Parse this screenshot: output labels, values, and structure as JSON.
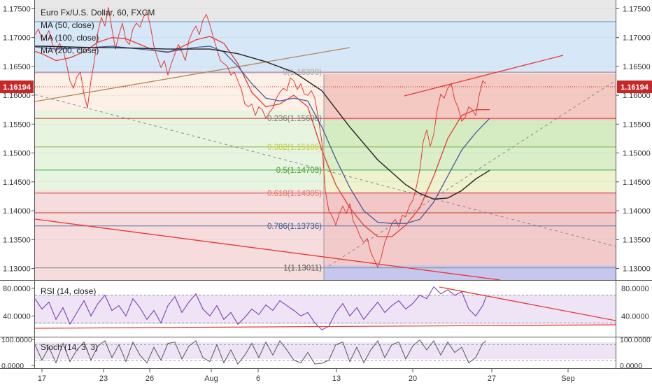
{
  "title": "Euro Fx/U.S. Dollar, 60, FXCM",
  "colors": {
    "price": "#e53935",
    "ma50": "#e53935",
    "ma100": "#4a5a9c",
    "ma200": "#222222",
    "rsi": "#7b3fb0",
    "stoch": "#555555",
    "badge": "#c62828",
    "trend_red": "#e53935",
    "trend_brown": "#b08a55"
  },
  "legend": [
    {
      "label": "MA (50, close)"
    },
    {
      "label": "MA (100, close)"
    },
    {
      "label": "MA (200, close)"
    }
  ],
  "price_badge": "1.16194",
  "price_level": 1.16194,
  "chart_data": [
    {
      "type": "line",
      "panel": "price",
      "title": "Euro Fx/U.S. Dollar, 60, FXCM",
      "ylim": [
        1.128,
        1.1765
      ],
      "y_ticks": [
        "1.17500",
        "1.17000",
        "1.16500",
        "1.16000",
        "1.15500",
        "1.15000",
        "1.14500",
        "1.14000",
        "1.13500",
        "1.13000"
      ],
      "x_ticks": [
        "17",
        "23",
        "26",
        "Aug",
        "6",
        "13",
        "20",
        "27",
        "Sep"
      ],
      "fibonacci": [
        {
          "label": "0(1.16399)",
          "value": 1.16399
        },
        {
          "label": "0.236(1.15600)",
          "value": 1.156
        },
        {
          "label": "0.382(1.15105)",
          "value": 1.15105
        },
        {
          "label": "0.5(1.14705)",
          "value": 1.14705
        },
        {
          "label": "0.618(1.14305)",
          "value": 1.14305
        },
        {
          "label": "0.786(1.13736)",
          "value": 1.13736
        },
        {
          "label": "1(1.13011)",
          "value": 1.13011
        }
      ],
      "series": [
        {
          "name": "MA (50, close)",
          "x": [
            0,
            20,
            40,
            60,
            80,
            100,
            120,
            140,
            160,
            180,
            200,
            220,
            240,
            260,
            280,
            300,
            320,
            340,
            360,
            380,
            400,
            420,
            440,
            460,
            480,
            500,
            520,
            540,
            560,
            580,
            600,
            620,
            640,
            660,
            680,
            700
          ],
          "values": [
            1.1705,
            1.1695,
            1.168,
            1.1672,
            1.166,
            1.1665,
            1.1675,
            1.1692,
            1.17,
            1.1698,
            1.1688,
            1.1678,
            1.1674,
            1.1684,
            1.1696,
            1.1702,
            1.169,
            1.1655,
            1.1605,
            1.158,
            1.1585,
            1.16,
            1.158,
            1.1505,
            1.1445,
            1.1405,
            1.1375,
            1.1355,
            1.1355,
            1.1375,
            1.1405,
            1.146,
            1.1525,
            1.1565,
            1.1575,
            1.1575
          ]
        },
        {
          "name": "MA (100, close)",
          "x": [
            0,
            40,
            80,
            120,
            160,
            200,
            240,
            280,
            300,
            320,
            340,
            360,
            380,
            400,
            420,
            440,
            460,
            480,
            500,
            520,
            540,
            560,
            580,
            600,
            620,
            640,
            660,
            680,
            700
          ],
          "values": [
            1.1695,
            1.1685,
            1.168,
            1.1682,
            1.1685,
            1.168,
            1.1675,
            1.1683,
            1.1685,
            1.1675,
            1.165,
            1.162,
            1.1595,
            1.159,
            1.1595,
            1.159,
            1.1545,
            1.149,
            1.144,
            1.14,
            1.138,
            1.1378,
            1.1378,
            1.1385,
            1.1415,
            1.146,
            1.1505,
            1.1535,
            1.156
          ]
        },
        {
          "name": "MA (200, close)",
          "x": [
            0,
            60,
            120,
            180,
            240,
            300,
            340,
            380,
            420,
            460,
            500,
            540,
            580,
            600,
            620,
            640,
            660,
            680,
            700
          ],
          "values": [
            1.1685,
            1.1685,
            1.1683,
            1.1682,
            1.168,
            1.168,
            1.1672,
            1.1658,
            1.164,
            1.1608,
            1.1545,
            1.1488,
            1.1445,
            1.143,
            1.142,
            1.1422,
            1.1435,
            1.1455,
            1.147
          ]
        },
        {
          "name": "",
          "x": [
            50,
            55,
            60,
            65,
            70,
            75,
            80,
            85,
            90,
            95,
            100,
            105,
            110,
            115,
            120,
            125,
            130,
            135,
            140,
            145,
            150,
            155,
            160,
            165,
            170,
            175,
            180,
            185,
            190,
            195,
            200,
            205,
            210,
            215,
            220,
            225,
            230,
            235,
            240,
            245,
            250,
            255,
            260,
            265,
            270,
            275,
            280,
            285,
            290,
            295,
            300,
            305,
            310,
            315,
            320,
            325,
            330,
            335,
            340,
            345,
            350,
            355,
            360,
            365,
            370,
            375,
            380,
            385,
            390,
            395,
            400,
            405,
            410,
            415,
            420,
            425,
            430,
            435,
            440,
            445,
            450,
            455,
            460,
            465,
            470,
            475,
            480,
            485,
            490,
            495,
            500,
            505,
            510,
            515,
            520,
            525,
            530,
            535,
            540,
            545,
            550,
            555,
            560,
            565,
            570,
            575,
            580,
            585,
            590,
            595,
            600,
            605,
            610,
            615,
            620,
            625,
            630,
            635,
            640,
            645,
            650,
            655,
            660,
            665,
            670,
            675,
            680,
            685,
            690,
            695
          ],
          "values": [
            1.1705,
            1.1715,
            1.1695,
            1.17,
            1.1712,
            1.1688,
            1.1675,
            1.169,
            1.168,
            1.1655,
            1.1625,
            1.1612,
            1.1632,
            1.164,
            1.1602,
            1.1578,
            1.1625,
            1.166,
            1.171,
            1.1735,
            1.172,
            1.1752,
            1.1715,
            1.168,
            1.1705,
            1.1725,
            1.1695,
            1.1688,
            1.1715,
            1.1725,
            1.1718,
            1.1735,
            1.1745,
            1.172,
            1.1685,
            1.1665,
            1.1648,
            1.166,
            1.1635,
            1.1655,
            1.1672,
            1.1688,
            1.1675,
            1.166,
            1.1695,
            1.171,
            1.172,
            1.1705,
            1.173,
            1.174,
            1.1722,
            1.17,
            1.168,
            1.166,
            1.1655,
            1.165,
            1.1635,
            1.164,
            1.1625,
            1.161,
            1.1585,
            1.158,
            1.1585,
            1.1565,
            1.158,
            1.1575,
            1.156,
            1.157,
            1.1578,
            1.1595,
            1.1605,
            1.1612,
            1.1608,
            1.163,
            1.1625,
            1.161,
            1.162,
            1.1602,
            1.16,
            1.1608,
            1.1595,
            1.156,
            1.152,
            1.1435,
            1.14,
            1.139,
            1.1375,
            1.1395,
            1.1408,
            1.1395,
            1.1412,
            1.1382,
            1.137,
            1.1355,
            1.1345,
            1.1352,
            1.1328,
            1.1315,
            1.1302,
            1.132,
            1.1345,
            1.136,
            1.1378,
            1.1385,
            1.1372,
            1.1392,
            1.139,
            1.1408,
            1.1418,
            1.144,
            1.147,
            1.152,
            1.154,
            1.1512,
            1.1532,
            1.1575,
            1.1602,
            1.1595,
            1.1612,
            1.162,
            1.1592,
            1.1578,
            1.1555,
            1.1562,
            1.158,
            1.1575,
            1.1565,
            1.16,
            1.1625,
            1.162
          ]
        }
      ]
    },
    {
      "type": "line",
      "panel": "rsi",
      "title": "RSI (14, close)",
      "ylim": [
        10,
        90
      ],
      "y_ticks": [
        "80.0000",
        "40.0000"
      ],
      "series": [
        {
          "name": "RSI (14, close)",
          "x": [
            50,
            60,
            70,
            80,
            90,
            100,
            110,
            120,
            130,
            140,
            150,
            160,
            170,
            180,
            190,
            200,
            210,
            220,
            230,
            240,
            250,
            260,
            270,
            280,
            290,
            300,
            310,
            320,
            330,
            340,
            350,
            360,
            370,
            380,
            390,
            400,
            410,
            420,
            430,
            440,
            450,
            460,
            470,
            480,
            490,
            500,
            510,
            520,
            530,
            540,
            550,
            560,
            570,
            580,
            590,
            600,
            610,
            620,
            630,
            640,
            650,
            660,
            670,
            680,
            690,
            695
          ],
          "values": [
            65,
            50,
            60,
            35,
            52,
            28,
            45,
            62,
            40,
            58,
            70,
            48,
            55,
            40,
            65,
            52,
            35,
            48,
            30,
            55,
            68,
            45,
            60,
            72,
            50,
            40,
            55,
            35,
            45,
            28,
            38,
            50,
            42,
            56,
            48,
            62,
            55,
            48,
            40,
            45,
            30,
            20,
            25,
            45,
            58,
            40,
            52,
            35,
            48,
            60,
            45,
            55,
            62,
            50,
            58,
            70,
            65,
            82,
            72,
            78,
            70,
            75,
            50,
            40,
            55,
            68
          ]
        }
      ]
    },
    {
      "type": "line",
      "panel": "stoch",
      "title": "Stoch (14, 3, 3)",
      "ylim": [
        0,
        100
      ],
      "y_ticks": [
        "100.0000",
        "0.0000"
      ],
      "series": [
        {
          "name": "Stoch (14, 3, 3)",
          "x": [
            50,
            60,
            70,
            80,
            90,
            100,
            110,
            120,
            130,
            140,
            150,
            160,
            170,
            180,
            190,
            200,
            210,
            220,
            230,
            240,
            250,
            260,
            270,
            280,
            290,
            300,
            310,
            320,
            330,
            340,
            350,
            360,
            370,
            380,
            390,
            400,
            410,
            420,
            430,
            440,
            450,
            460,
            470,
            480,
            490,
            500,
            510,
            520,
            530,
            540,
            550,
            560,
            570,
            580,
            590,
            600,
            610,
            620,
            630,
            640,
            650,
            660,
            670,
            680,
            690,
            695
          ],
          "values": [
            80,
            20,
            70,
            10,
            85,
            15,
            60,
            90,
            20,
            75,
            95,
            30,
            80,
            15,
            90,
            40,
            10,
            70,
            20,
            85,
            90,
            25,
            75,
            95,
            30,
            15,
            80,
            10,
            60,
            5,
            40,
            85,
            30,
            90,
            40,
            95,
            60,
            20,
            10,
            50,
            5,
            8,
            20,
            80,
            90,
            15,
            70,
            10,
            60,
            95,
            30,
            80,
            90,
            25,
            75,
            98,
            60,
            95,
            40,
            90,
            50,
            70,
            10,
            30,
            85,
            95
          ]
        }
      ]
    }
  ]
}
